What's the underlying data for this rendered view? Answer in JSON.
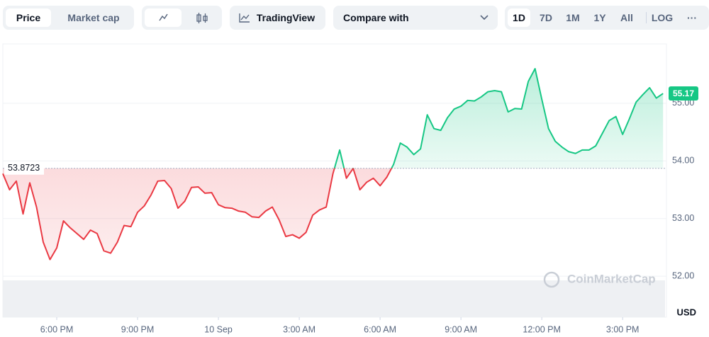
{
  "toolbar": {
    "modes": [
      "Price",
      "Market cap"
    ],
    "tradingview": "TradingView",
    "compare": "Compare with",
    "ranges": [
      "1D",
      "7D",
      "1M",
      "1Y",
      "All"
    ],
    "active_range": "1D",
    "log": "LOG",
    "more": "···"
  },
  "chart_data": {
    "type": "line",
    "y_unit": "USD",
    "watermark": "CoinMarketCap",
    "baseline": 53.8723,
    "up_color": "#16c784",
    "down_color": "#ea3943",
    "xlim": [
      16,
      40.6
    ],
    "ylim": [
      51.29,
      56.03
    ],
    "xticks": [
      {
        "value": 18,
        "label": "6:00 PM"
      },
      {
        "value": 21,
        "label": "9:00 PM"
      },
      {
        "value": 24,
        "label": "10 Sep"
      },
      {
        "value": 27,
        "label": "3:00 AM"
      },
      {
        "value": 30,
        "label": "6:00 AM"
      },
      {
        "value": 33,
        "label": "9:00 AM"
      },
      {
        "value": 36,
        "label": "12:00 PM"
      },
      {
        "value": 39,
        "label": "3:00 PM"
      }
    ],
    "yticks": [
      {
        "value": 52,
        "label": "52.00"
      },
      {
        "value": 53,
        "label": "53.00"
      },
      {
        "value": 54,
        "label": "54.00"
      },
      {
        "value": 55,
        "label": "55.00"
      }
    ],
    "grid": true,
    "x": [
      16.0,
      16.25,
      16.5,
      16.75,
      17.0,
      17.25,
      17.5,
      17.75,
      18.0,
      18.25,
      18.5,
      18.75,
      19.0,
      19.25,
      19.5,
      19.75,
      20.0,
      20.25,
      20.5,
      20.75,
      21.0,
      21.25,
      21.5,
      21.75,
      22.0,
      22.25,
      22.5,
      22.75,
      23.0,
      23.25,
      23.5,
      23.75,
      24.0,
      24.25,
      24.5,
      24.75,
      25.0,
      25.25,
      25.5,
      25.75,
      26.0,
      26.25,
      26.5,
      26.75,
      27.0,
      27.25,
      27.5,
      27.75,
      28.0,
      28.25,
      28.5,
      28.75,
      29.0,
      29.25,
      29.5,
      29.75,
      30.0,
      30.25,
      30.5,
      30.75,
      31.0,
      31.25,
      31.5,
      31.75,
      32.0,
      32.25,
      32.5,
      32.75,
      33.0,
      33.25,
      33.5,
      33.75,
      34.0,
      34.25,
      34.5,
      34.75,
      35.0,
      35.25,
      35.5,
      35.75,
      36.0,
      36.25,
      36.5,
      36.75,
      37.0,
      37.25,
      37.5,
      37.75,
      38.0,
      38.25,
      38.5,
      38.75,
      39.0,
      39.25,
      39.5,
      39.75,
      40.0,
      40.25,
      40.5
    ],
    "series": [
      {
        "name": "Price",
        "values": [
          53.78,
          53.5,
          53.65,
          53.08,
          53.62,
          53.2,
          52.59,
          52.29,
          52.49,
          52.96,
          52.84,
          52.74,
          52.64,
          52.8,
          52.74,
          52.44,
          52.4,
          52.59,
          52.88,
          52.86,
          53.11,
          53.22,
          53.41,
          53.65,
          53.66,
          53.52,
          53.18,
          53.3,
          53.54,
          53.55,
          53.44,
          53.45,
          53.24,
          53.19,
          53.18,
          53.13,
          53.11,
          53.03,
          53.02,
          53.13,
          53.2,
          52.98,
          52.69,
          52.72,
          52.66,
          52.76,
          53.06,
          53.15,
          53.2,
          53.78,
          54.19,
          53.7,
          53.87,
          53.5,
          53.63,
          53.7,
          53.57,
          53.72,
          53.94,
          54.31,
          54.24,
          54.11,
          54.21,
          54.8,
          54.56,
          54.53,
          54.75,
          54.9,
          54.95,
          55.05,
          55.04,
          55.11,
          55.2,
          55.22,
          55.2,
          54.85,
          54.91,
          54.9,
          55.38,
          55.6,
          55.07,
          54.56,
          54.34,
          54.24,
          54.16,
          54.13,
          54.19,
          54.19,
          54.26,
          54.48,
          54.7,
          54.77,
          54.46,
          54.73,
          55.02,
          55.15,
          55.27,
          55.09,
          55.17
        ]
      }
    ]
  }
}
